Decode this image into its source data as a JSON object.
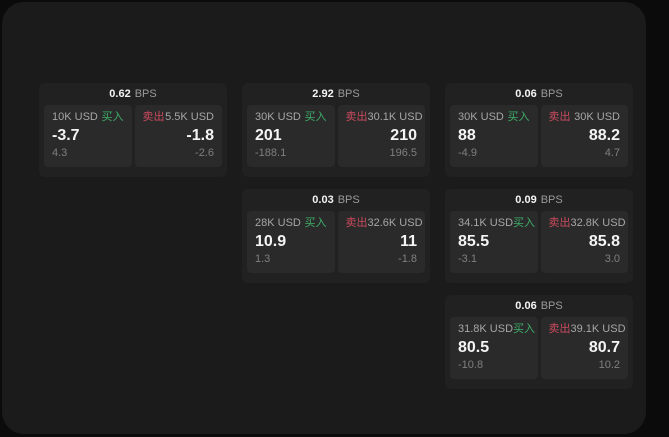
{
  "colors": {
    "page_background": "#0b0b0b",
    "panel_background": "#1b1b1b",
    "card_background": "#212121",
    "tile_background": "#2a2a2a",
    "buy_accent": "#3fae6a",
    "sell_accent": "#cb4a5e",
    "text_primary": "#f4f4f4",
    "text_secondary": "#a6a6a6",
    "text_tertiary": "#7f7f7f"
  },
  "labels": {
    "bps_unit": "BPS",
    "buy": "买入",
    "sell": "卖出"
  },
  "cards": [
    {
      "bps": "0.62",
      "buy": {
        "amount": "10K USD",
        "price": "-3.7",
        "delta": "4.3"
      },
      "sell": {
        "amount": "5.5K USD",
        "price": "-1.8",
        "delta": "-2.6"
      }
    },
    {
      "bps": "2.92",
      "buy": {
        "amount": "30K USD",
        "price": "201",
        "delta": "-188.1"
      },
      "sell": {
        "amount": "30.1K USD",
        "price": "210",
        "delta": "196.5"
      }
    },
    {
      "bps": "0.06",
      "buy": {
        "amount": "30K USD",
        "price": "88",
        "delta": "-4.9"
      },
      "sell": {
        "amount": "30K USD",
        "price": "88.2",
        "delta": "4.7"
      }
    },
    {
      "bps": "0.03",
      "buy": {
        "amount": "28K USD",
        "price": "10.9",
        "delta": "1.3"
      },
      "sell": {
        "amount": "32.6K USD",
        "price": "11",
        "delta": "-1.8"
      }
    },
    {
      "bps": "0.09",
      "buy": {
        "amount": "34.1K USD",
        "price": "85.5",
        "delta": "-3.1"
      },
      "sell": {
        "amount": "32.8K USD",
        "price": "85.8",
        "delta": "3.0"
      }
    },
    {
      "bps": "0.06",
      "buy": {
        "amount": "31.8K USD",
        "price": "80.5",
        "delta": "-10.8"
      },
      "sell": {
        "amount": "39.1K USD",
        "price": "80.7",
        "delta": "10.2"
      }
    }
  ]
}
